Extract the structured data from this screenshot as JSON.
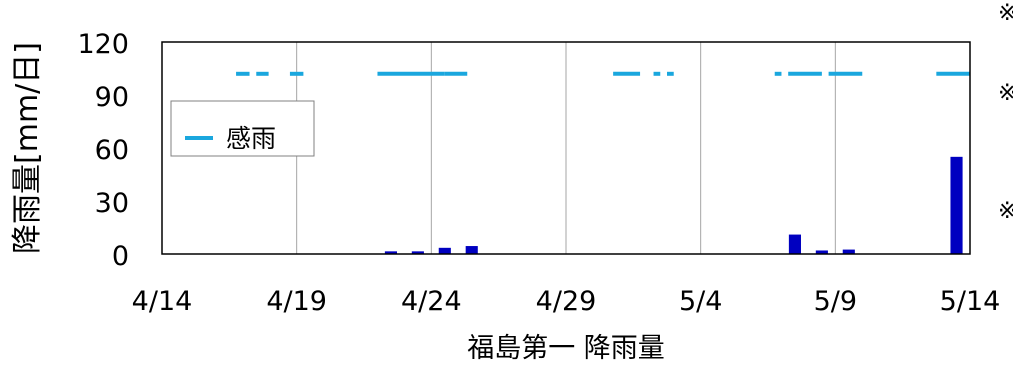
{
  "chart_data": {
    "type": "bar",
    "ylabel": "降雨量[mm/日]",
    "xlabel": "福島第一 降雨量",
    "ylim": [
      0,
      120
    ],
    "y_ticks": [
      "0",
      "30",
      "60",
      "90",
      "120"
    ],
    "x_range": [
      "2024-04-14",
      "2024-05-14"
    ],
    "x_tick_labels": [
      "4/14",
      "4/19",
      "4/24",
      "4/29",
      "5/4",
      "5/9",
      "5/14"
    ],
    "grid": "vertical",
    "legend_placement": "left",
    "bar_color": "#0000c0",
    "rain_line_color": "#1aa7de",
    "rainfall": [
      {
        "date": "2024-04-17",
        "value": 0
      },
      {
        "date": "2024-04-18",
        "value": 0
      },
      {
        "date": "2024-04-19",
        "value": 0
      },
      {
        "date": "2024-04-22",
        "value": 1.5
      },
      {
        "date": "2024-04-23",
        "value": 1.5
      },
      {
        "date": "2024-04-24",
        "value": 3.5
      },
      {
        "date": "2024-04-25",
        "value": 4.5
      },
      {
        "date": "2024-05-01",
        "value": 0
      },
      {
        "date": "2024-05-02",
        "value": 0
      },
      {
        "date": "2024-05-07",
        "value": 11
      },
      {
        "date": "2024-05-08",
        "value": 2
      },
      {
        "date": "2024-05-09",
        "value": 2.5
      },
      {
        "date": "2024-05-10",
        "value": 0
      },
      {
        "date": "2024-05-13",
        "value": 55
      },
      {
        "date": "2024-05-14",
        "value": 0
      }
    ],
    "rain_indicator": {
      "name": "感雨",
      "value": 102,
      "segments": [
        [
          "2024-04-16 18:00",
          "2024-04-17 06:00"
        ],
        [
          "2024-04-17 12:00",
          "2024-04-17 23:00"
        ],
        [
          "2024-04-18 18:00",
          "2024-04-19 06:00"
        ],
        [
          "2024-04-22 00:00",
          "2024-04-24 12:00"
        ],
        [
          "2024-04-24 12:00",
          "2024-04-25 08:00"
        ],
        [
          "2024-04-30 18:00",
          "2024-05-01 18:00"
        ],
        [
          "2024-05-02 06:00",
          "2024-05-02 12:00"
        ],
        [
          "2024-05-02 18:00",
          "2024-05-03 00:00"
        ],
        [
          "2024-05-06 18:00",
          "2024-05-07 00:00"
        ],
        [
          "2024-05-07 06:00",
          "2024-05-08 12:00"
        ],
        [
          "2024-05-08 18:00",
          "2024-05-10 00:00"
        ],
        [
          "2024-05-12 18:00",
          "2024-05-14 06:00"
        ]
      ]
    },
    "side_notes": [
      "※",
      "※",
      "※"
    ]
  }
}
